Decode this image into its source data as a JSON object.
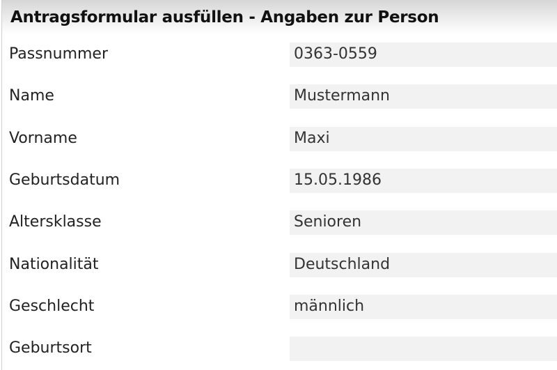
{
  "form": {
    "title": "Antragsformular ausfüllen - Angaben zur Person",
    "fields": [
      {
        "label": "Passnummer",
        "value": "0363-0559"
      },
      {
        "label": "Name",
        "value": "Mustermann"
      },
      {
        "label": "Vorname",
        "value": "Maxi"
      },
      {
        "label": "Geburtsdatum",
        "value": "15.05.1986"
      },
      {
        "label": "Altersklasse",
        "value": "Senioren"
      },
      {
        "label": "Nationalität",
        "value": "Deutschland"
      },
      {
        "label": "Geschlecht",
        "value": "männlich"
      },
      {
        "label": "Geburtsort",
        "value": ""
      }
    ]
  }
}
